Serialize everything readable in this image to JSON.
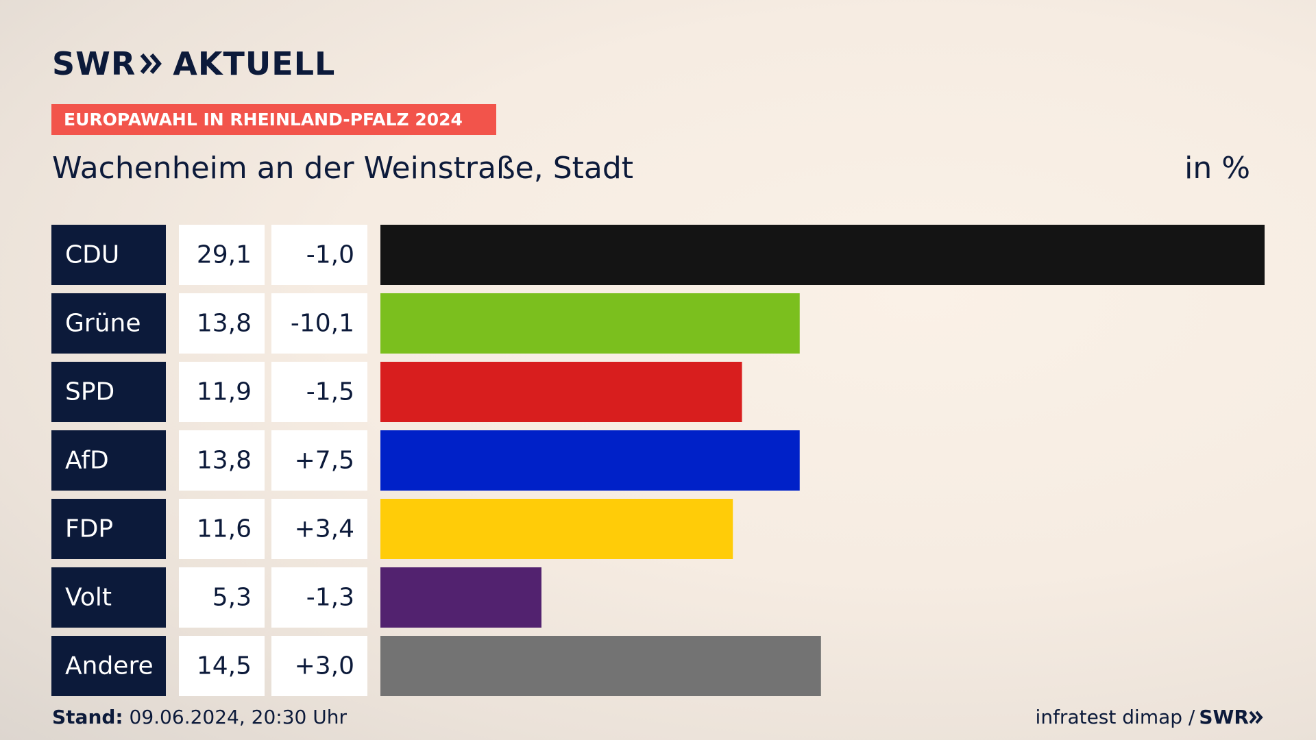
{
  "header": {
    "logo_part1": "SWR",
    "logo_part2": "AKTUELL",
    "banner": "EUROPAWAHL IN RHEINLAND-PFALZ 2024",
    "subtitle": "Wachenheim an der Weinstraße, Stadt",
    "unit": "in %"
  },
  "footer": {
    "stand_label": "Stand:",
    "stand_value": "09.06.2024, 20:30 Uhr",
    "source": "infratest dimap /",
    "source_brand": "SWR"
  },
  "colors": {
    "dark_navy": "#0c1a3a",
    "banner_red": "#f2544b"
  },
  "chart_data": {
    "type": "bar",
    "orientation": "horizontal",
    "categories": [
      "CDU",
      "Grüne",
      "SPD",
      "AfD",
      "FDP",
      "Volt",
      "Andere"
    ],
    "values": [
      29.1,
      13.8,
      11.9,
      13.8,
      11.6,
      5.3,
      14.5
    ],
    "value_labels": [
      "29,1",
      "13,8",
      "11,9",
      "13,8",
      "11,6",
      "5,3",
      "14,5"
    ],
    "change_labels": [
      "-1,0",
      "-10,1",
      "-1,5",
      "+7,5",
      "+3,4",
      "-1,3",
      "+3,0"
    ],
    "changes": [
      -1.0,
      -10.1,
      -1.5,
      7.5,
      3.4,
      -1.3,
      3.0
    ],
    "bar_colors": [
      "#141414",
      "#7bbf1e",
      "#d81e1e",
      "#0021c8",
      "#ffcc08",
      "#52226f",
      "#737373"
    ],
    "xlim": [
      0,
      29.1
    ],
    "grid": false
  }
}
